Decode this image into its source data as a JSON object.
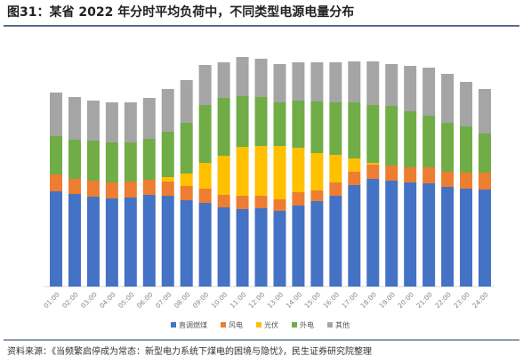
{
  "chart_data": {
    "type": "bar_stacked",
    "title": "图31：某省 2022 年分时平均负荷中，不同类型电源电量分布",
    "source": "资料来源：《当频繁启停成为常态：新型电力系统下煤电的困境与隐忧》，民生证券研究院整理",
    "categories": [
      "01:00",
      "02:00",
      "03:00",
      "04:00",
      "05:00",
      "06:00",
      "07:00",
      "08:00",
      "09:00",
      "10:00",
      "11:00",
      "12:00",
      "13:00",
      "14:00",
      "15:00",
      "16:00",
      "17:00",
      "18:00",
      "19:00",
      "20:00",
      "21:00",
      "22:00",
      "23:00",
      "24:00"
    ],
    "series": [
      {
        "name": "直调燃煤",
        "color": "#4472c4",
        "values": [
          107,
          104,
          101,
          99,
          100,
          103,
          102,
          97,
          94,
          89,
          87,
          88,
          85,
          91,
          96,
          102,
          114,
          121,
          119,
          117,
          116,
          112,
          110,
          109
        ]
      },
      {
        "name": "风电",
        "color": "#ed7d31",
        "values": [
          19,
          17,
          18,
          18,
          18,
          17,
          16,
          16,
          16,
          14,
          15,
          14,
          13,
          15,
          12,
          15,
          15,
          16,
          17,
          17,
          18,
          17,
          18,
          19
        ]
      },
      {
        "name": "光伏",
        "color": "#ffc000",
        "values": [
          0,
          0,
          0,
          0,
          0,
          0,
          5,
          14,
          29,
          44,
          55,
          56,
          60,
          50,
          42,
          31,
          15,
          2,
          0,
          0,
          0,
          0,
          0,
          0
        ]
      },
      {
        "name": "外电",
        "color": "#70ad47",
        "values": [
          43,
          44,
          45,
          45,
          44,
          46,
          51,
          57,
          65,
          65,
          57,
          55,
          49,
          53,
          58,
          59,
          63,
          65,
          67,
          63,
          58,
          55,
          52,
          44
        ]
      },
      {
        "name": "其他",
        "color": "#a5a5a5",
        "values": [
          49,
          48,
          45,
          45,
          45,
          46,
          48,
          48,
          45,
          40,
          44,
          43,
          43,
          43,
          44,
          45,
          46,
          49,
          47,
          51,
          54,
          55,
          50,
          50
        ]
      }
    ]
  }
}
